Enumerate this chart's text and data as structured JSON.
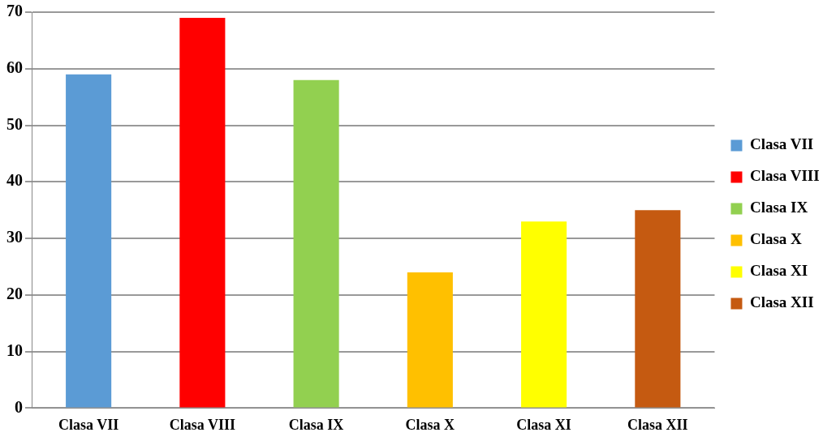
{
  "chart_data": {
    "type": "bar",
    "categories": [
      "Clasa VII",
      "Clasa VIII",
      "Clasa IX",
      "Clasa X",
      "Clasa XI",
      "Clasa XII"
    ],
    "series": [
      {
        "name": "Clasa VII",
        "color": "#5b9bd5",
        "values": [
          59,
          null,
          null,
          null,
          null,
          null
        ]
      },
      {
        "name": "Clasa VIII",
        "color": "#ff0000",
        "values": [
          null,
          69,
          null,
          null,
          null,
          null
        ]
      },
      {
        "name": "Clasa IX",
        "color": "#92d050",
        "values": [
          null,
          null,
          58,
          null,
          null,
          null
        ]
      },
      {
        "name": "Clasa X",
        "color": "#ffc000",
        "values": [
          null,
          null,
          null,
          24,
          null,
          null
        ]
      },
      {
        "name": "Clasa XI",
        "color": "#ffff00",
        "values": [
          null,
          null,
          null,
          null,
          33,
          null
        ]
      },
      {
        "name": "Clasa XII",
        "color": "#c55a11",
        "values": [
          null,
          null,
          null,
          null,
          null,
          35
        ]
      }
    ],
    "ylim": [
      0,
      70
    ],
    "yticks": [
      0,
      10,
      20,
      30,
      40,
      50,
      60,
      70
    ],
    "grid": "y",
    "legend": "right"
  }
}
